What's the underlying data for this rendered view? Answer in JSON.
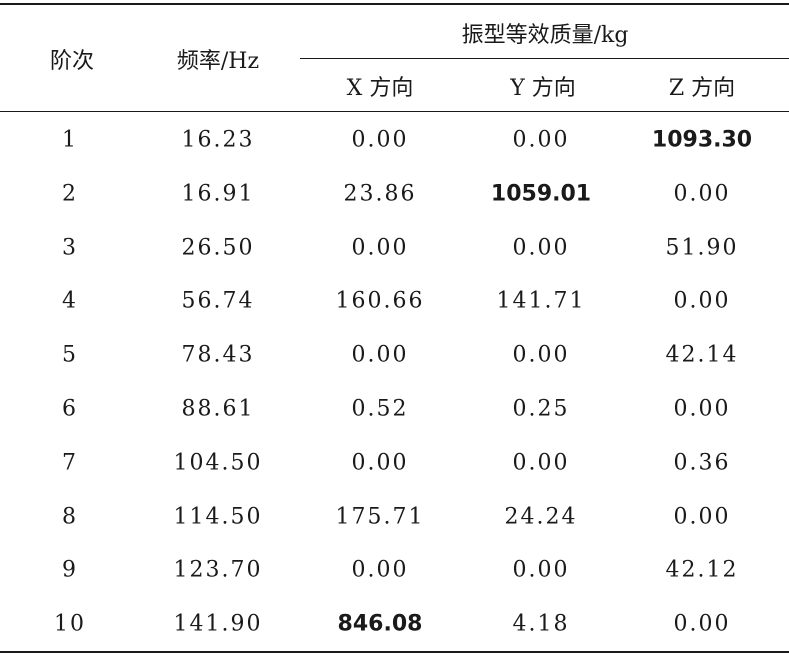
{
  "table": {
    "headers": {
      "order": "阶次",
      "frequency": "频率/Hz",
      "group": "振型等效质量/kg",
      "x": "X 方向",
      "y": "Y 方向",
      "z": "Z 方向"
    },
    "rows": [
      {
        "order": "1",
        "freq": "16.23",
        "x": "0.00",
        "y": "0.00",
        "z": "1093.30",
        "bold": "z"
      },
      {
        "order": "2",
        "freq": "16.91",
        "x": "23.86",
        "y": "1059.01",
        "z": "0.00",
        "bold": "y"
      },
      {
        "order": "3",
        "freq": "26.50",
        "x": "0.00",
        "y": "0.00",
        "z": "51.90",
        "bold": ""
      },
      {
        "order": "4",
        "freq": "56.74",
        "x": "160.66",
        "y": "141.71",
        "z": "0.00",
        "bold": ""
      },
      {
        "order": "5",
        "freq": "78.43",
        "x": "0.00",
        "y": "0.00",
        "z": "42.14",
        "bold": ""
      },
      {
        "order": "6",
        "freq": "88.61",
        "x": "0.52",
        "y": "0.25",
        "z": "0.00",
        "bold": ""
      },
      {
        "order": "7",
        "freq": "104.50",
        "x": "0.00",
        "y": "0.00",
        "z": "0.36",
        "bold": ""
      },
      {
        "order": "8",
        "freq": "114.50",
        "x": "175.71",
        "y": "24.24",
        "z": "0.00",
        "bold": ""
      },
      {
        "order": "9",
        "freq": "123.70",
        "x": "0.00",
        "y": "0.00",
        "z": "42.12",
        "bold": ""
      },
      {
        "order": "10",
        "freq": "141.90",
        "x": "846.08",
        "y": "4.18",
        "z": "0.00",
        "bold": "x"
      }
    ]
  }
}
